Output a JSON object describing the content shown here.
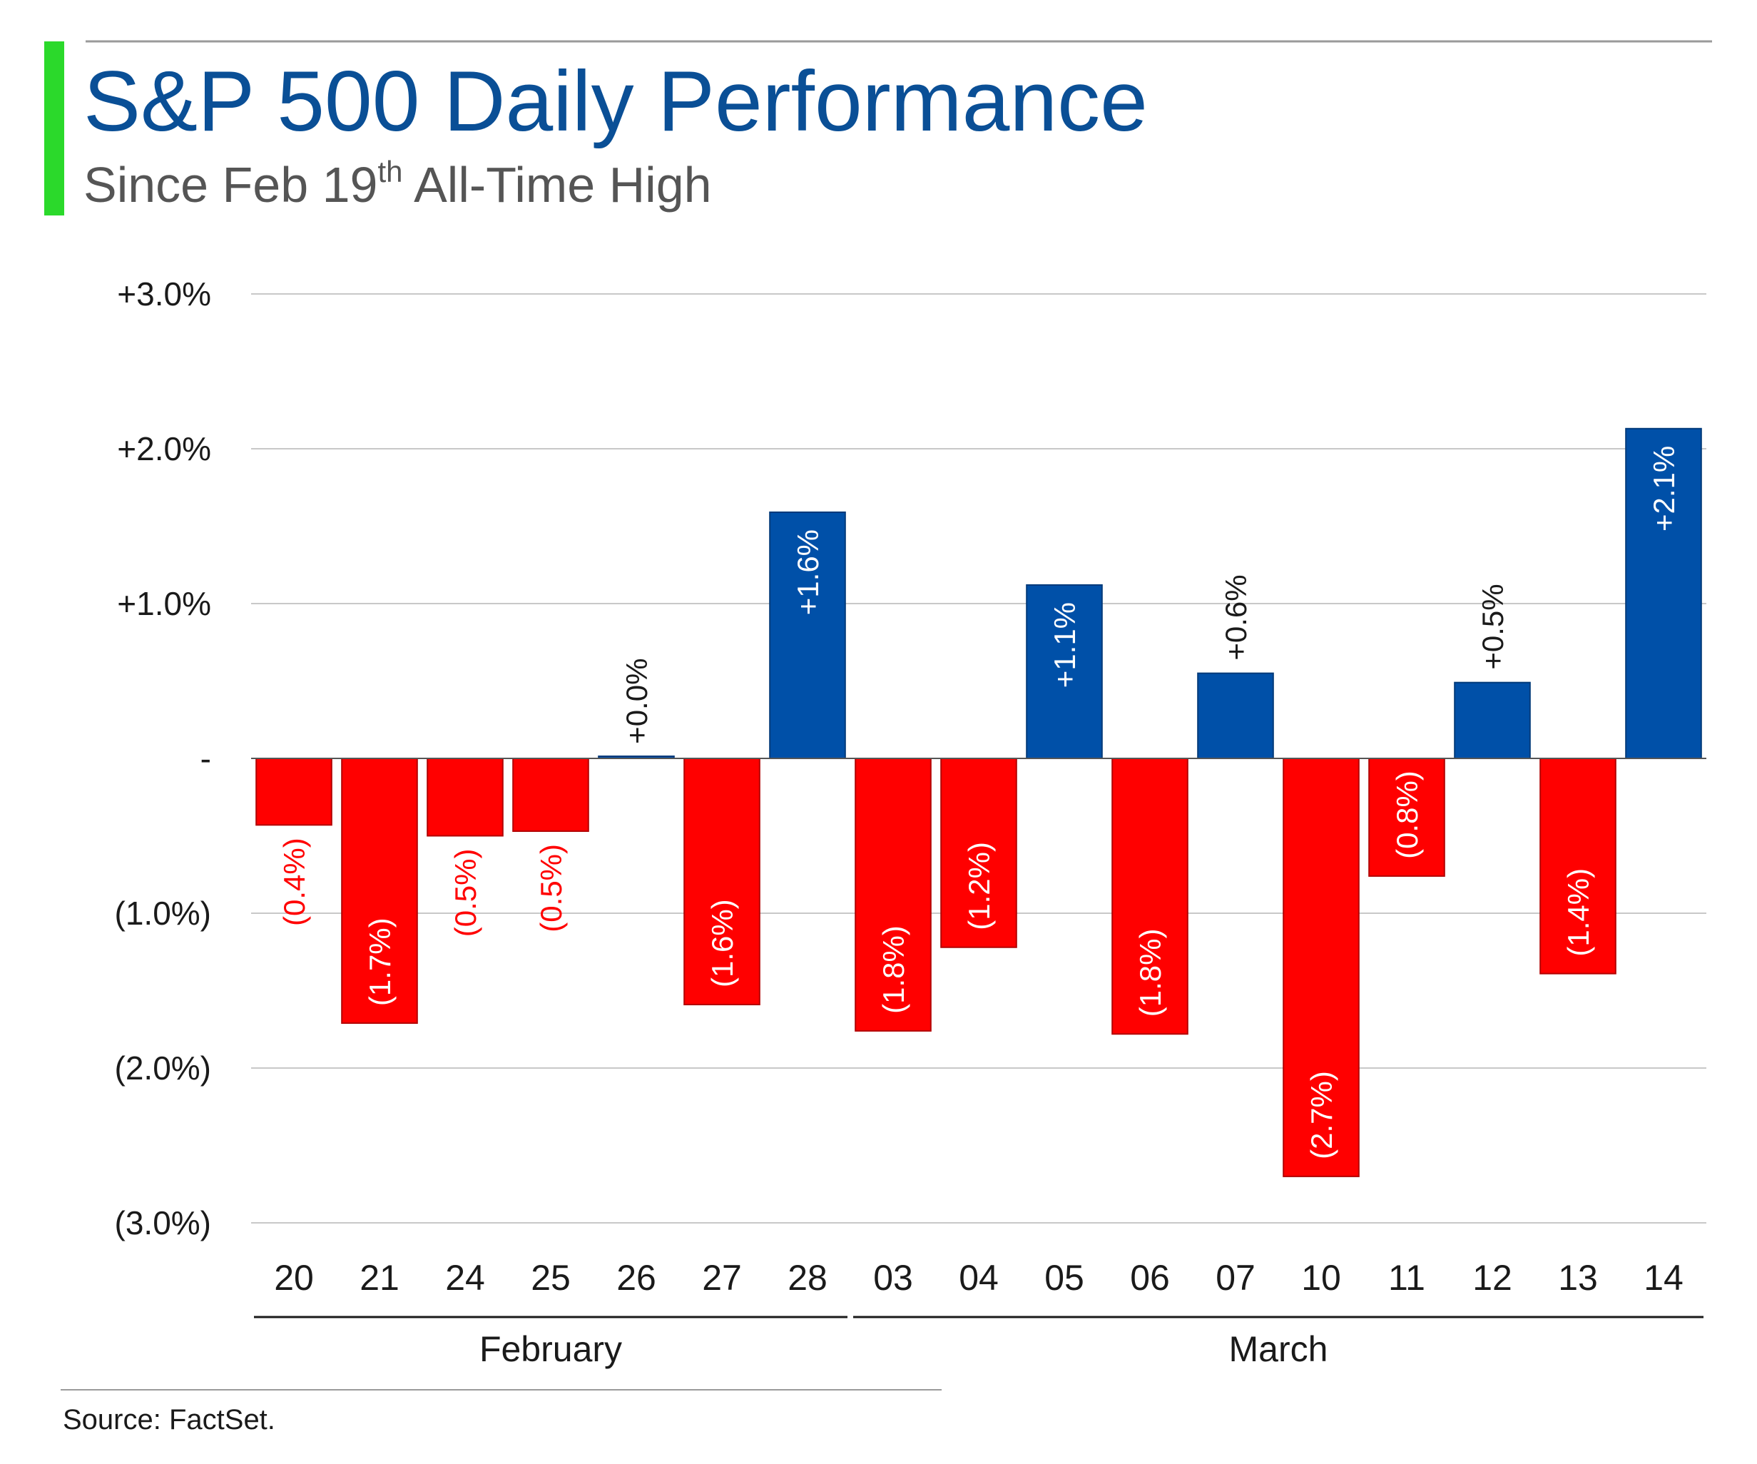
{
  "header": {
    "title": "S&P 500 Daily Performance",
    "subtitle_main": "Since Feb 19",
    "subtitle_sup": "th",
    "subtitle_rest": " All-Time High"
  },
  "footer": {
    "source": "Source: FactSet."
  },
  "colors": {
    "accent_bar": "#2bd92b",
    "title": "#0a4f96",
    "subtitle": "#555555",
    "positive": "#0050a8",
    "negative": "#ff0000",
    "gridline": "#c8c8c8",
    "axis_text": "#1a1a1a"
  },
  "chart_data": {
    "type": "bar",
    "categories": [
      "20",
      "21",
      "24",
      "25",
      "26",
      "27",
      "28",
      "03",
      "04",
      "05",
      "06",
      "07",
      "10",
      "11",
      "12",
      "13",
      "14"
    ],
    "values": [
      -0.43,
      -1.71,
      -0.5,
      -0.47,
      0.01,
      -1.59,
      1.59,
      -1.76,
      -1.22,
      1.12,
      -1.78,
      0.55,
      -2.7,
      -0.76,
      0.49,
      -1.39,
      2.13
    ],
    "data_labels": [
      "(0.4%)",
      "(1.7%)",
      "(0.5%)",
      "(0.5%)",
      "+0.0%",
      "(1.6%)",
      "+1.6%",
      "(1.8%)",
      "(1.2%)",
      "+1.1%",
      "(1.8%)",
      "+0.6%",
      "(2.7%)",
      "(0.8%)",
      "+0.5%",
      "(1.4%)",
      "+2.1%"
    ],
    "label_inside": [
      false,
      true,
      false,
      false,
      false,
      true,
      true,
      true,
      true,
      true,
      true,
      false,
      true,
      true,
      false,
      true,
      true
    ],
    "ylim": [
      -3,
      3
    ],
    "yticks": [
      3,
      2,
      1,
      0,
      -1,
      -2,
      -3
    ],
    "ytick_labels": [
      "+3.0%",
      "+2.0%",
      "+1.0%",
      "-",
      "(1.0%)",
      "(2.0%)",
      "(3.0%)"
    ],
    "groups": [
      {
        "label": "February",
        "start": 0,
        "end": 6
      },
      {
        "label": "March",
        "start": 7,
        "end": 16
      }
    ],
    "grid": true
  }
}
